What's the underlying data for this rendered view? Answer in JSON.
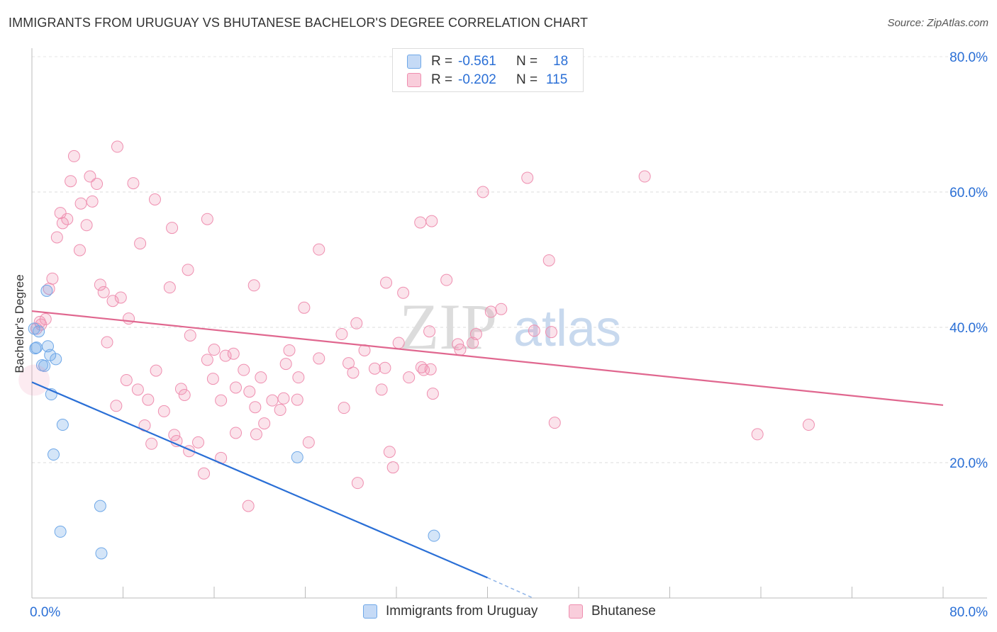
{
  "title": "IMMIGRANTS FROM URUGUAY VS BHUTANESE BACHELOR'S DEGREE CORRELATION CHART",
  "source": "Source: ZipAtlas.com",
  "watermark": {
    "zip": "ZIP",
    "atlas": "atlas"
  },
  "legend": {
    "rows": [
      {
        "r_label": "R =",
        "r_value": "-0.561",
        "n_label": "N =",
        "n_value": "18",
        "color": "#6fa8e8"
      },
      {
        "r_label": "R =",
        "r_value": "-0.202",
        "n_label": "N =",
        "n_value": "115",
        "color": "#ef8fb0"
      }
    ]
  },
  "bottom_legend": [
    {
      "label": "Immigrants from Uruguay",
      "color": "#6fa8e8"
    },
    {
      "label": "Bhutanese",
      "color": "#ef8fb0"
    }
  ],
  "chart_data": {
    "type": "scatter",
    "title": "IMMIGRANTS FROM URUGUAY VS BHUTANESE BACHELOR'S DEGREE CORRELATION CHART",
    "xlabel": "",
    "ylabel": "Bachelor's Degree",
    "xlim": [
      0,
      80
    ],
    "ylim": [
      0,
      80
    ],
    "x_tick_labels": [
      "0.0%",
      "80.0%"
    ],
    "y_tick_labels": [
      "20.0%",
      "40.0%",
      "60.0%",
      "80.0%"
    ],
    "y_ticks": [
      20,
      40,
      60,
      80
    ],
    "grid": true,
    "legend_position": "top-center",
    "series": [
      {
        "name": "Immigrants from Uruguay",
        "color": "#6fa8e8",
        "trend": {
          "x": [
            0,
            40
          ],
          "y": [
            31.9,
            3.0
          ],
          "dashed_extension_to": [
            44,
            0
          ]
        },
        "points": [
          [
            0.2,
            39.8
          ],
          [
            0.6,
            39.4
          ],
          [
            0.4,
            37.0
          ],
          [
            1.4,
            37.2
          ],
          [
            1.6,
            35.9
          ],
          [
            2.1,
            35.3
          ],
          [
            1.1,
            34.3
          ],
          [
            0.9,
            34.4
          ],
          [
            1.7,
            30.1
          ],
          [
            1.3,
            45.4
          ],
          [
            2.7,
            25.6
          ],
          [
            1.9,
            21.2
          ],
          [
            6.0,
            13.6
          ],
          [
            2.5,
            9.8
          ],
          [
            6.1,
            6.6
          ],
          [
            23.3,
            20.8
          ],
          [
            35.3,
            9.2
          ],
          [
            0.3,
            36.9
          ]
        ]
      },
      {
        "name": "Bhutanese",
        "color": "#ef8fb0",
        "trend": {
          "x": [
            0,
            80
          ],
          "y": [
            42.4,
            28.5
          ]
        },
        "points": [
          [
            3.7,
            65.3
          ],
          [
            7.5,
            66.7
          ],
          [
            3.4,
            61.6
          ],
          [
            5.1,
            62.3
          ],
          [
            5.7,
            61.2
          ],
          [
            8.9,
            61.3
          ],
          [
            10.8,
            58.9
          ],
          [
            4.3,
            58.3
          ],
          [
            5.3,
            58.6
          ],
          [
            2.5,
            56.9
          ],
          [
            2.7,
            55.4
          ],
          [
            3.1,
            56.0
          ],
          [
            4.8,
            55.1
          ],
          [
            12.3,
            54.7
          ],
          [
            15.4,
            56.0
          ],
          [
            2.2,
            53.3
          ],
          [
            9.5,
            52.4
          ],
          [
            4.2,
            51.4
          ],
          [
            25.2,
            51.5
          ],
          [
            13.7,
            48.5
          ],
          [
            1.8,
            47.2
          ],
          [
            6.0,
            46.3
          ],
          [
            12.1,
            45.9
          ],
          [
            19.5,
            46.2
          ],
          [
            1.5,
            45.7
          ],
          [
            6.3,
            45.2
          ],
          [
            7.8,
            44.4
          ],
          [
            7.1,
            43.9
          ],
          [
            23.9,
            42.9
          ],
          [
            1.2,
            41.2
          ],
          [
            8.5,
            41.3
          ],
          [
            28.5,
            40.6
          ],
          [
            0.8,
            40.4
          ],
          [
            0.7,
            40.8
          ],
          [
            0.4,
            39.8
          ],
          [
            27.2,
            39.0
          ],
          [
            34.9,
            39.4
          ],
          [
            13.9,
            38.8
          ],
          [
            6.6,
            37.8
          ],
          [
            32.2,
            37.7
          ],
          [
            37.4,
            37.5
          ],
          [
            38.7,
            37.7
          ],
          [
            22.6,
            36.6
          ],
          [
            29.2,
            36.6
          ],
          [
            16.0,
            36.7
          ],
          [
            17.0,
            35.8
          ],
          [
            17.7,
            36.1
          ],
          [
            25.2,
            35.4
          ],
          [
            15.4,
            35.2
          ],
          [
            22.3,
            34.6
          ],
          [
            27.8,
            34.7
          ],
          [
            34.2,
            34.1
          ],
          [
            35.0,
            33.8
          ],
          [
            31.0,
            34.0
          ],
          [
            30.1,
            33.9
          ],
          [
            18.6,
            33.7
          ],
          [
            10.9,
            33.6
          ],
          [
            34.4,
            33.7
          ],
          [
            15.9,
            32.4
          ],
          [
            20.1,
            32.6
          ],
          [
            23.4,
            32.6
          ],
          [
            8.3,
            32.2
          ],
          [
            28.2,
            33.3
          ],
          [
            33.1,
            32.6
          ],
          [
            17.9,
            31.1
          ],
          [
            9.3,
            30.8
          ],
          [
            13.1,
            30.9
          ],
          [
            30.7,
            30.8
          ],
          [
            19.1,
            30.5
          ],
          [
            13.4,
            30.0
          ],
          [
            35.2,
            30.2
          ],
          [
            16.6,
            29.2
          ],
          [
            10.2,
            29.3
          ],
          [
            21.1,
            29.2
          ],
          [
            22.1,
            29.5
          ],
          [
            23.3,
            29.3
          ],
          [
            7.4,
            28.4
          ],
          [
            19.6,
            28.2
          ],
          [
            27.4,
            28.1
          ],
          [
            21.8,
            27.8
          ],
          [
            11.6,
            27.6
          ],
          [
            20.4,
            25.8
          ],
          [
            9.9,
            25.5
          ],
          [
            17.9,
            24.4
          ],
          [
            12.5,
            24.1
          ],
          [
            19.7,
            24.2
          ],
          [
            45.9,
            25.9
          ],
          [
            63.7,
            24.2
          ],
          [
            68.2,
            25.6
          ],
          [
            12.7,
            23.2
          ],
          [
            14.6,
            23.0
          ],
          [
            10.5,
            22.8
          ],
          [
            24.3,
            23.0
          ],
          [
            31.4,
            21.6
          ],
          [
            13.8,
            21.7
          ],
          [
            16.6,
            20.7
          ],
          [
            31.7,
            19.3
          ],
          [
            15.1,
            18.4
          ],
          [
            28.6,
            17.0
          ],
          [
            19.0,
            13.6
          ],
          [
            36.4,
            47.0
          ],
          [
            34.1,
            55.5
          ],
          [
            35.1,
            55.7
          ],
          [
            39.6,
            60.0
          ],
          [
            43.5,
            62.1
          ],
          [
            53.8,
            62.3
          ],
          [
            45.4,
            49.9
          ],
          [
            40.3,
            42.3
          ],
          [
            41.2,
            42.7
          ],
          [
            44.1,
            39.5
          ],
          [
            45.6,
            39.3
          ],
          [
            39.0,
            39.0
          ],
          [
            37.6,
            36.7
          ],
          [
            32.6,
            45.1
          ],
          [
            31.1,
            46.6
          ]
        ]
      }
    ]
  }
}
